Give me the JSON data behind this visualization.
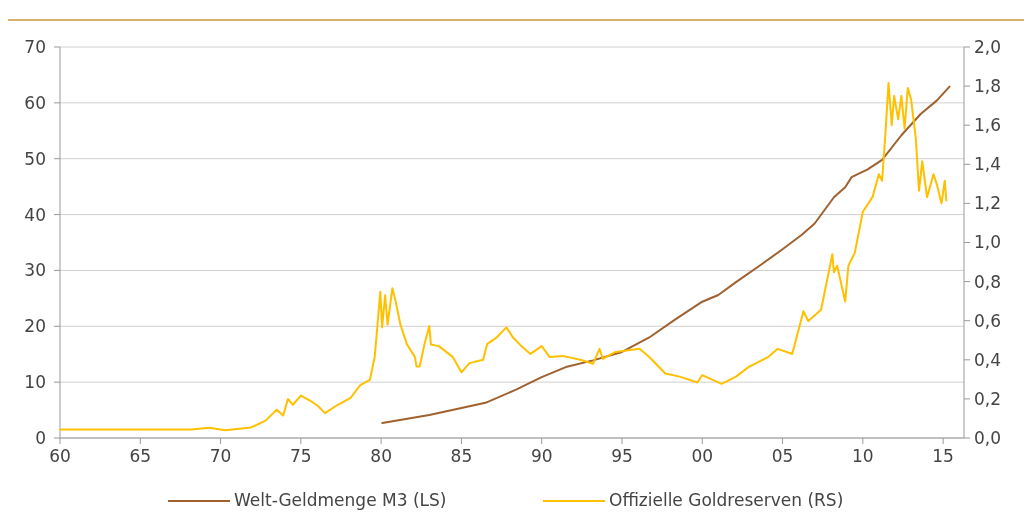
{
  "chart_data": {
    "type": "line",
    "xlim": [
      1960,
      2016.3
    ],
    "xticks": [
      {
        "value": 1960,
        "label": "60"
      },
      {
        "value": 1965,
        "label": "65"
      },
      {
        "value": 1970,
        "label": "70"
      },
      {
        "value": 1975,
        "label": "75"
      },
      {
        "value": 1980,
        "label": "80"
      },
      {
        "value": 1985,
        "label": "85"
      },
      {
        "value": 1990,
        "label": "90"
      },
      {
        "value": 1995,
        "label": "95"
      },
      {
        "value": 2000,
        "label": "00"
      },
      {
        "value": 2005,
        "label": "05"
      },
      {
        "value": 2010,
        "label": "10"
      },
      {
        "value": 2015,
        "label": "15"
      }
    ],
    "ylim": [
      0,
      70
    ],
    "yticks": [
      0,
      10,
      20,
      30,
      40,
      50,
      60,
      70
    ],
    "y2lim": [
      0,
      2
    ],
    "y2ticks": [
      {
        "value": 0,
        "label": "0,0"
      },
      {
        "value": 0.2,
        "label": "0,2"
      },
      {
        "value": 0.4,
        "label": "0,4"
      },
      {
        "value": 0.6,
        "label": "0,6"
      },
      {
        "value": 0.8,
        "label": "0,8"
      },
      {
        "value": 1,
        "label": "1,0"
      },
      {
        "value": 1.2,
        "label": "1,2"
      },
      {
        "value": 1.4,
        "label": "1,4"
      },
      {
        "value": 1.6,
        "label": "1,6"
      },
      {
        "value": 1.8,
        "label": "1,8"
      },
      {
        "value": 2,
        "label": "2,0"
      }
    ],
    "grid": "y",
    "legend": "bottom",
    "line_style": "solid",
    "series": [
      {
        "name": "Welt-Geldmenge M3 (LS)",
        "color": "#a0612f",
        "x": [
          1980.07,
          1983,
          1986.5,
          1988.4,
          1990,
          1991.5,
          1993.2,
          1995,
          1996.7,
          1998.3,
          2000,
          2001,
          2002.1,
          2003.7,
          2005,
          2006.2,
          2007,
          2008.2,
          2008.9,
          2009.3,
          2010.3,
          2011.2,
          2012.4,
          2013.6,
          2014.6,
          2015.4
        ],
        "values": [
          2.7,
          4.1,
          6.3,
          8.65,
          10.9,
          12.7,
          13.9,
          15.4,
          18,
          21.2,
          24.4,
          25.6,
          27.9,
          31.1,
          33.8,
          36.4,
          38.4,
          43.1,
          44.9,
          46.7,
          48.1,
          49.8,
          54.2,
          58,
          60.4,
          62.9
        ]
      },
      {
        "name": "Offizielle Goldreserven (RS)",
        "color": "#ffc000",
        "axis": "y2",
        "x": [
          1960,
          1968.2,
          1969.3,
          1970.3,
          1971.9,
          1972.8,
          1973.5,
          1973.9,
          1974.2,
          1974.5,
          1975,
          1975.6,
          1976.05,
          1976.5,
          1977.3,
          1978.1,
          1978.7,
          1979.3,
          1979.6,
          1979.95,
          1980.06,
          1980.25,
          1980.4,
          1980.7,
          1980.9,
          1981.2,
          1981.6,
          1982.1,
          1982.2,
          1982.4,
          1982.7,
          1983,
          1983.1,
          1983.6,
          1984.45,
          1985,
          1985.5,
          1986.35,
          1986.6,
          1987.2,
          1987.8,
          1988.2,
          1988.8,
          1989.3,
          1990,
          1990.5,
          1991.3,
          1992.4,
          1993.2,
          1993.6,
          1993.8,
          1994.6,
          1996.1,
          1996.7,
          1997.7,
          1998.6,
          1999.7,
          2000,
          2001.2,
          2002.1,
          2002.9,
          2004.1,
          2004.7,
          2005.6,
          2006.3,
          2006.6,
          2007.4,
          2008.1,
          2008.2,
          2008.4,
          2008.9,
          2009.1,
          2009.5,
          2010,
          2010.6,
          2011,
          2011.2,
          2011.4,
          2011.6,
          2011.8,
          2011.95,
          2012.2,
          2012.4,
          2012.6,
          2012.8,
          2013,
          2013.3,
          2013.5,
          2013.7,
          2014,
          2014.4,
          2014.6,
          2014.9,
          2015.1,
          2015.2
        ],
        "values": [
          0.044,
          0.044,
          0.052,
          0.04,
          0.054,
          0.089,
          0.145,
          0.115,
          0.2,
          0.17,
          0.217,
          0.19,
          0.165,
          0.127,
          0.17,
          0.205,
          0.27,
          0.297,
          0.415,
          0.748,
          0.566,
          0.73,
          0.58,
          0.766,
          0.7,
          0.58,
          0.48,
          0.415,
          0.366,
          0.366,
          0.48,
          0.573,
          0.478,
          0.47,
          0.415,
          0.336,
          0.383,
          0.4,
          0.48,
          0.515,
          0.566,
          0.515,
          0.465,
          0.43,
          0.47,
          0.414,
          0.42,
          0.4,
          0.38,
          0.456,
          0.405,
          0.44,
          0.456,
          0.414,
          0.33,
          0.314,
          0.284,
          0.322,
          0.277,
          0.314,
          0.364,
          0.414,
          0.456,
          0.43,
          0.648,
          0.598,
          0.656,
          0.94,
          0.848,
          0.881,
          0.698,
          0.881,
          0.948,
          1.157,
          1.232,
          1.349,
          1.316,
          1.55,
          1.816,
          1.6,
          1.75,
          1.63,
          1.75,
          1.583,
          1.79,
          1.733,
          1.532,
          1.265,
          1.416,
          1.232,
          1.349,
          1.3,
          1.2,
          1.316,
          1.215
        ]
      }
    ]
  }
}
